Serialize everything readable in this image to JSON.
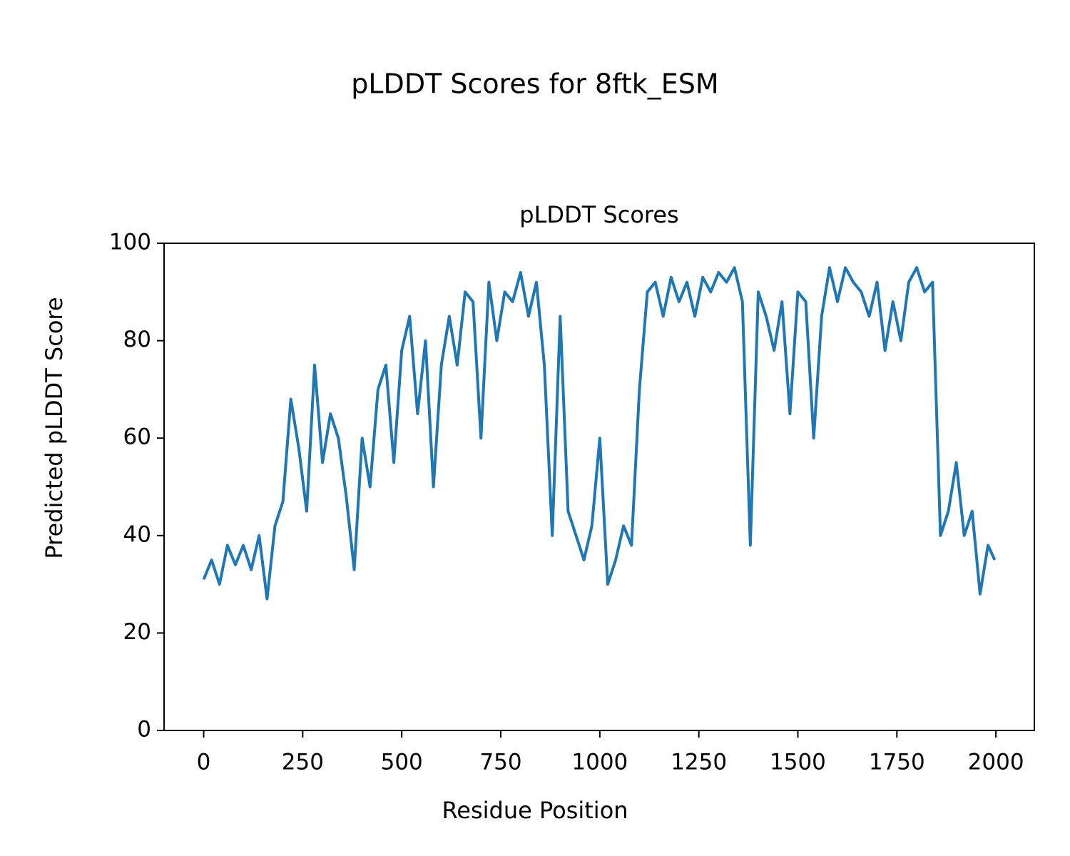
{
  "chart_data": {
    "type": "line",
    "title": "pLDDT Scores for 8ftk_ESM",
    "subtitle": "pLDDT Scores",
    "x_label": "Residue Position",
    "y_label": "Predicted pLDDT Score",
    "x": [
      0,
      20,
      40,
      60,
      80,
      100,
      120,
      140,
      160,
      180,
      200,
      220,
      240,
      260,
      280,
      300,
      320,
      340,
      360,
      380,
      400,
      420,
      440,
      460,
      480,
      500,
      520,
      540,
      560,
      580,
      600,
      620,
      640,
      660,
      680,
      700,
      720,
      740,
      760,
      780,
      800,
      820,
      840,
      860,
      880,
      900,
      920,
      940,
      960,
      980,
      1000,
      1020,
      1040,
      1060,
      1080,
      1100,
      1120,
      1140,
      1160,
      1180,
      1200,
      1220,
      1240,
      1260,
      1280,
      1300,
      1320,
      1340,
      1360,
      1380,
      1400,
      1420,
      1440,
      1460,
      1480,
      1500,
      1520,
      1540,
      1560,
      1580,
      1600,
      1620,
      1640,
      1660,
      1680,
      1700,
      1720,
      1740,
      1760,
      1780,
      1800,
      1820,
      1840,
      1860,
      1880,
      1900,
      1920,
      1940,
      1960,
      1980,
      1997
    ],
    "series": [
      {
        "name": "pLDDT",
        "color": "#1f77b4",
        "values": [
          31,
          35,
          30,
          38,
          34,
          38,
          33,
          40,
          27,
          42,
          47,
          68,
          58,
          45,
          75,
          55,
          65,
          60,
          48,
          33,
          60,
          50,
          70,
          75,
          55,
          78,
          85,
          65,
          80,
          50,
          75,
          85,
          75,
          90,
          88,
          60,
          92,
          80,
          90,
          88,
          94,
          85,
          92,
          75,
          40,
          85,
          45,
          40,
          35,
          42,
          60,
          30,
          35,
          42,
          38,
          70,
          90,
          92,
          85,
          93,
          88,
          92,
          85,
          93,
          90,
          94,
          92,
          95,
          88,
          38,
          90,
          85,
          78,
          88,
          65,
          90,
          88,
          60,
          85,
          95,
          88,
          95,
          92,
          90,
          85,
          92,
          78,
          88,
          80,
          92,
          95,
          90,
          92,
          40,
          45,
          55,
          40,
          45,
          28,
          38,
          35
        ]
      }
    ],
    "xlim": [
      -100,
      2097
    ],
    "ylim": [
      0,
      100
    ],
    "xticks": [
      0,
      250,
      500,
      750,
      1000,
      1250,
      1500,
      1750,
      2000
    ],
    "yticks": [
      0,
      20,
      40,
      60,
      80,
      100
    ]
  }
}
